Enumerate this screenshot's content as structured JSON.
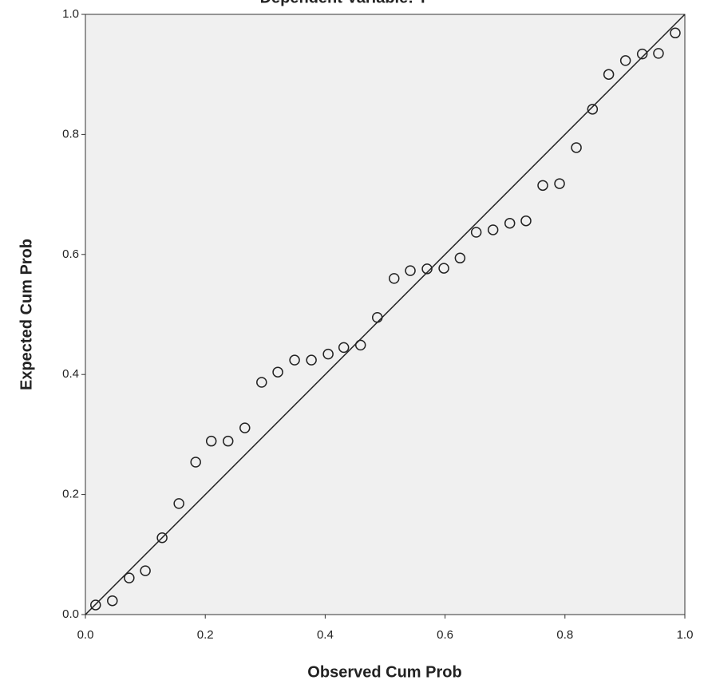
{
  "chart_data": {
    "type": "scatter",
    "title": "Dependent Variable: Y",
    "x_label": "Observed Cum Prob",
    "y_label": "Expected Cum Prob",
    "xlim": [
      0,
      1
    ],
    "ylim": [
      0,
      1
    ],
    "xticks": [
      {
        "value": 0,
        "label": "0.0"
      },
      0.2,
      0.4,
      0.6,
      0.8,
      {
        "value": 1,
        "label": "1.0"
      }
    ],
    "yticks": [
      {
        "value": 0,
        "label": "0.0"
      },
      0.2,
      0.4,
      0.6,
      0.8,
      {
        "value": 1,
        "label": "1.0"
      }
    ],
    "grid": false,
    "reference_line": true,
    "color": "#222222",
    "x": [
      0.017,
      0.045,
      0.073,
      0.1,
      0.128,
      0.156,
      0.184,
      0.21,
      0.238,
      0.266,
      0.294,
      0.321,
      0.349,
      0.377,
      0.405,
      0.431,
      0.459,
      0.487,
      0.515,
      0.542,
      0.57,
      0.598,
      0.625,
      0.652,
      0.68,
      0.708,
      0.735,
      0.763,
      0.791,
      0.819,
      0.846,
      0.873,
      0.901,
      0.929,
      0.956,
      0.984
    ],
    "values": [
      0.016,
      0.023,
      0.061,
      0.073,
      0.128,
      0.185,
      0.254,
      0.289,
      0.289,
      0.311,
      0.387,
      0.404,
      0.424,
      0.424,
      0.434,
      0.445,
      0.449,
      0.495,
      0.56,
      0.573,
      0.576,
      0.577,
      0.594,
      0.637,
      0.641,
      0.652,
      0.656,
      0.715,
      0.718,
      0.778,
      0.842,
      0.9,
      0.923,
      0.934,
      0.935,
      0.969
    ]
  }
}
